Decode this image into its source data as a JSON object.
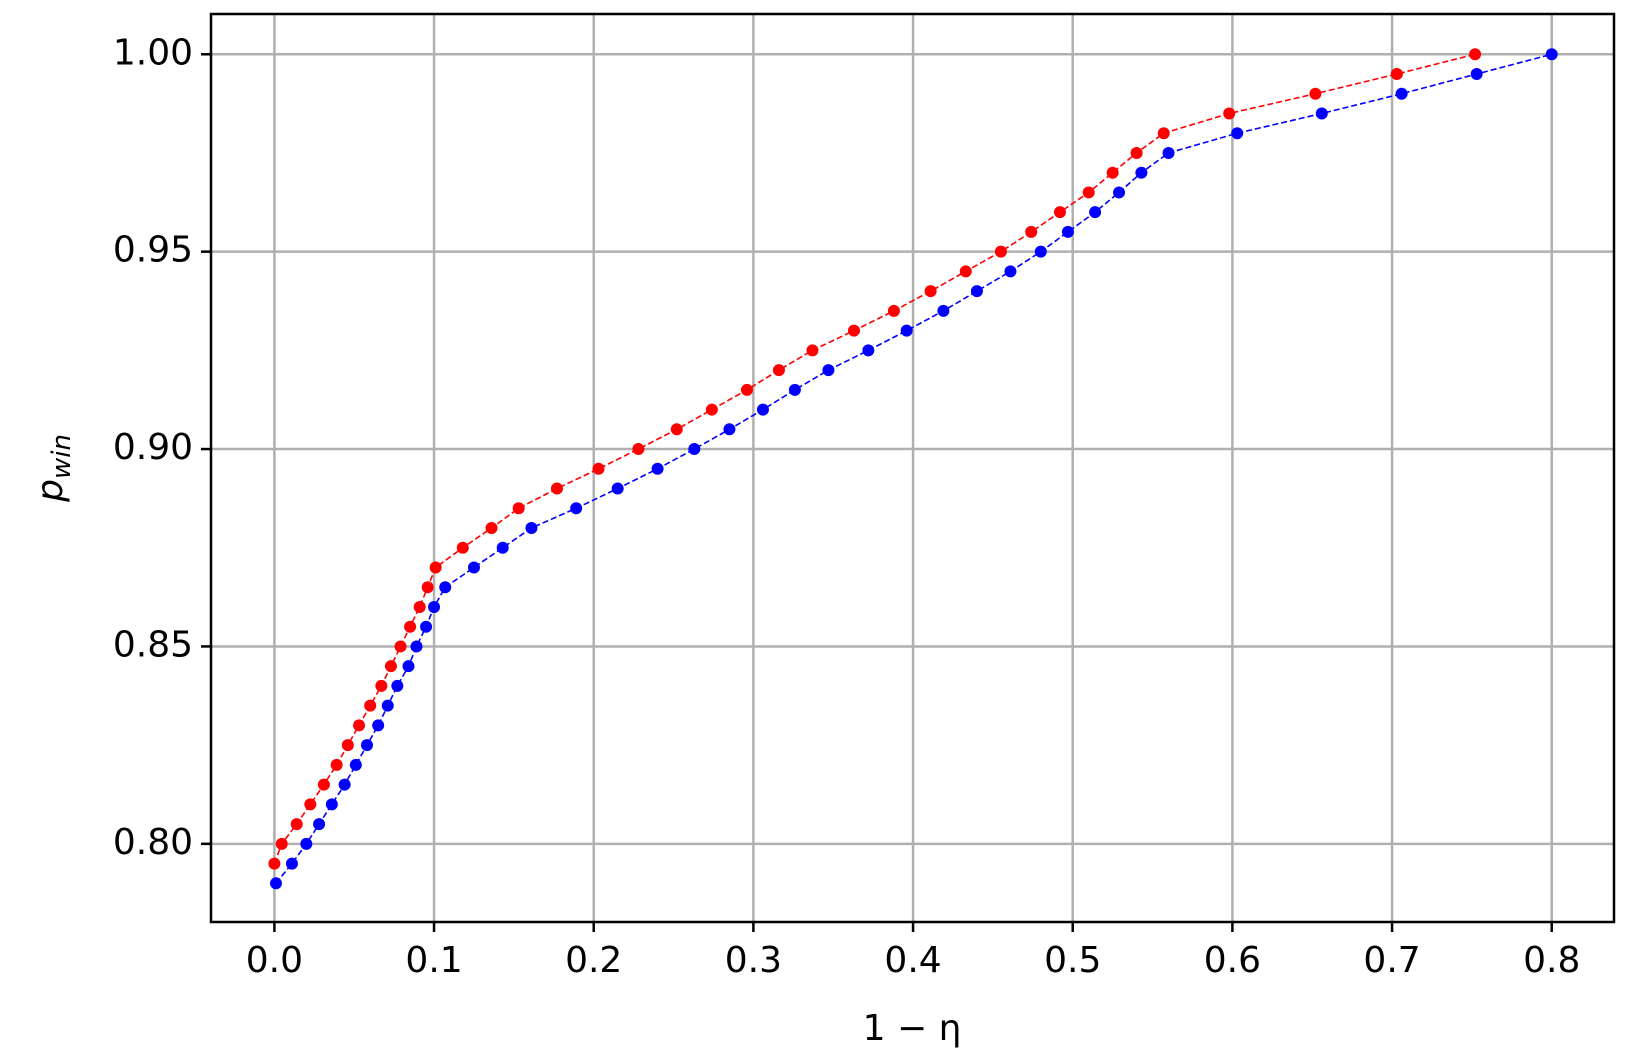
{
  "chart_data": {
    "type": "line",
    "xlabel": "1 − η",
    "ylabel": "p",
    "ylabel_subscript": "win",
    "xlim": [
      -0.0397,
      0.839
    ],
    "ylim": [
      0.7802,
      1.0102
    ],
    "xticks": [
      {
        "value": 0,
        "label": "0.0"
      },
      0.1,
      0.2,
      0.3,
      0.4,
      0.5,
      0.6,
      0.7,
      0.8
    ],
    "yticks": [
      {
        "value": 0.8,
        "label": "0.80"
      },
      0.85,
      {
        "value": 0.9,
        "label": "0.90"
      },
      0.95,
      {
        "value": 1,
        "label": "1.00"
      }
    ],
    "grid": true,
    "series": [
      {
        "color": "#ff0000",
        "x": [
          0,
          0.0046,
          0.014,
          0.0225,
          0.031,
          0.039,
          0.046,
          0.053,
          0.06,
          0.067,
          0.073,
          0.079,
          0.085,
          0.091,
          0.096,
          0.101,
          0.118,
          0.136,
          0.153,
          0.177,
          0.203,
          0.228,
          0.252,
          0.274,
          0.296,
          0.316,
          0.337,
          0.363,
          0.388,
          0.411,
          0.433,
          0.455,
          0.474,
          0.492,
          0.51,
          0.525,
          0.54,
          0.557,
          0.598,
          0.652,
          0.703,
          0.752
        ],
        "values": [
          0.795,
          0.8,
          0.805,
          0.81,
          0.815,
          0.82,
          0.825,
          0.83,
          0.835,
          0.84,
          0.845,
          0.85,
          0.855,
          0.86,
          0.865,
          0.87,
          0.875,
          0.88,
          0.885,
          0.89,
          0.895,
          0.9,
          0.905,
          0.91,
          0.915,
          0.92,
          0.925,
          0.93,
          0.935,
          0.94,
          0.945,
          0.95,
          0.955,
          0.96,
          0.965,
          0.97,
          0.975,
          0.98,
          0.985,
          0.99,
          0.995,
          1.0
        ]
      },
      {
        "color": "#0000ff",
        "x": [
          0.001,
          0.011,
          0.02,
          0.028,
          0.036,
          0.044,
          0.051,
          0.058,
          0.065,
          0.071,
          0.077,
          0.084,
          0.089,
          0.095,
          0.1,
          0.107,
          0.125,
          0.143,
          0.161,
          0.189,
          0.215,
          0.24,
          0.263,
          0.285,
          0.306,
          0.326,
          0.347,
          0.372,
          0.396,
          0.419,
          0.44,
          0.461,
          0.48,
          0.497,
          0.514,
          0.529,
          0.543,
          0.56,
          0.603,
          0.656,
          0.706,
          0.753,
          0.8
        ],
        "values": [
          0.79,
          0.795,
          0.8,
          0.805,
          0.81,
          0.815,
          0.82,
          0.825,
          0.83,
          0.835,
          0.84,
          0.845,
          0.85,
          0.855,
          0.86,
          0.865,
          0.87,
          0.875,
          0.88,
          0.885,
          0.89,
          0.895,
          0.9,
          0.905,
          0.91,
          0.915,
          0.92,
          0.925,
          0.93,
          0.935,
          0.94,
          0.945,
          0.95,
          0.955,
          0.96,
          0.965,
          0.97,
          0.975,
          0.98,
          0.985,
          0.99,
          0.995,
          1.0
        ]
      }
    ]
  }
}
